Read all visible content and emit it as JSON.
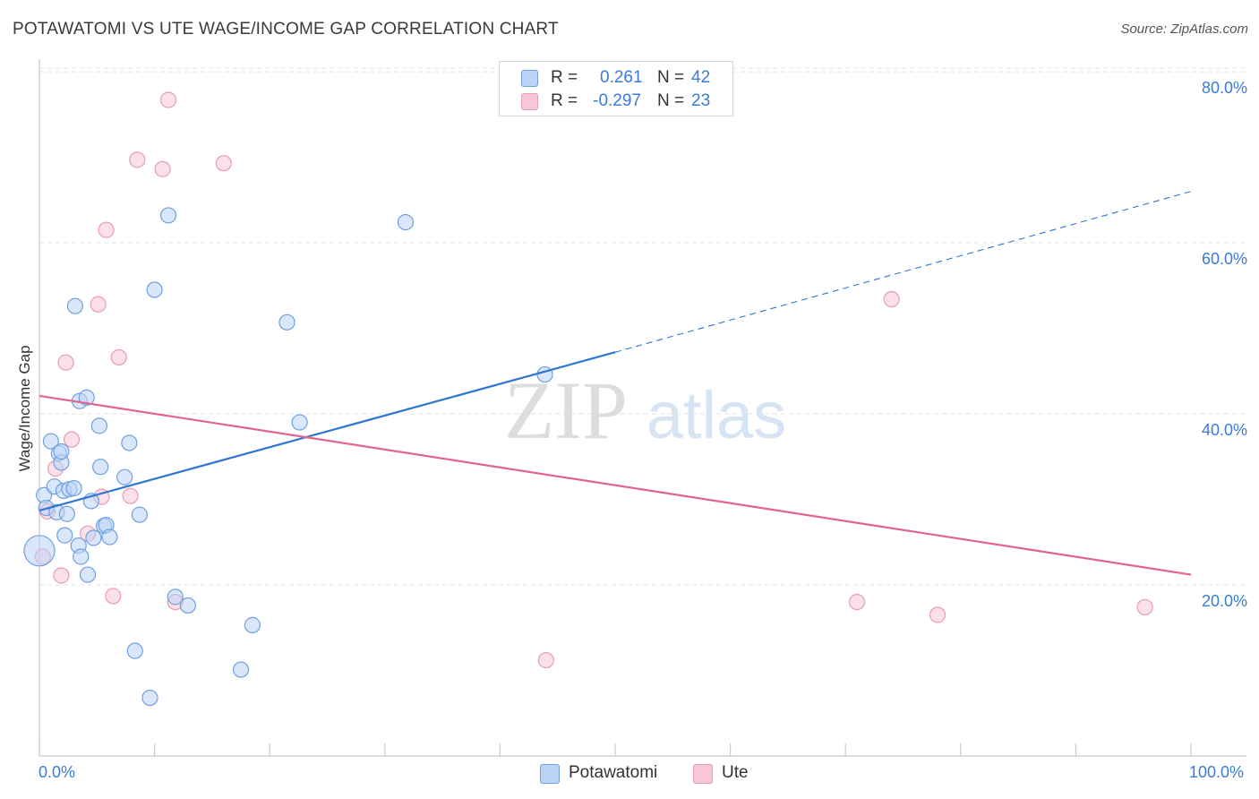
{
  "header": {
    "title": "POTAWATOMI VS UTE WAGE/INCOME GAP CORRELATION CHART",
    "source": "Source: ZipAtlas.com"
  },
  "legend_top": {
    "rows": [
      {
        "r_label": "R =",
        "r_value": "0.261",
        "n_label": "N =",
        "n_value": "42"
      },
      {
        "r_label": "R =",
        "r_value": "-0.297",
        "n_label": "N =",
        "n_value": "23"
      }
    ]
  },
  "legend_bottom": [
    "Potawatomi",
    "Ute"
  ],
  "watermark": {
    "zip": "ZIP",
    "atlas": "atlas"
  },
  "colors": {
    "blue_fill": "#bcd4f6",
    "blue_stroke": "#6f9fe0",
    "blue_line": "#2f75d2",
    "pink_fill": "#f8c6d6",
    "pink_stroke": "#e99ab4",
    "pink_line": "#e2648f",
    "tick_text": "#3a7bd5",
    "grid": "#e3e3e3"
  },
  "chart_data": {
    "type": "scatter",
    "title": "POTAWATOMI VS UTE WAGE/INCOME GAP CORRELATION CHART",
    "xlabel": "",
    "ylabel": "Wage/Income Gap",
    "xlim": [
      0,
      100
    ],
    "ylim": [
      0,
      80
    ],
    "x_tick_labels": [
      "0.0%",
      "100.0%"
    ],
    "y_ticks": [
      20,
      40,
      60,
      80
    ],
    "y_tick_labels": [
      "20.0%",
      "40.0%",
      "60.0%",
      "80.0%"
    ],
    "grid": true,
    "series": [
      {
        "name": "Potawatomi",
        "r": 0.261,
        "n": 42,
        "trend": {
          "x0": 0,
          "y0": 28.7,
          "x1": 50,
          "y1": 47.2,
          "dashed_to_x": 100,
          "dashed_to_y": 66.0
        },
        "points": [
          [
            0.0,
            24.0
          ],
          [
            0.4,
            30.5
          ],
          [
            0.6,
            29.0
          ],
          [
            1.0,
            36.8
          ],
          [
            1.3,
            31.5
          ],
          [
            1.5,
            28.5
          ],
          [
            1.7,
            35.4
          ],
          [
            1.9,
            34.3
          ],
          [
            2.1,
            31.0
          ],
          [
            2.2,
            25.8
          ],
          [
            2.4,
            28.3
          ],
          [
            2.6,
            31.2
          ],
          [
            3.0,
            31.3
          ],
          [
            3.1,
            52.6
          ],
          [
            3.4,
            24.6
          ],
          [
            3.5,
            41.5
          ],
          [
            3.6,
            23.3
          ],
          [
            4.1,
            41.9
          ],
          [
            4.5,
            29.8
          ],
          [
            4.7,
            25.5
          ],
          [
            5.2,
            38.6
          ],
          [
            5.3,
            33.8
          ],
          [
            5.6,
            26.9
          ],
          [
            5.8,
            27.0
          ],
          [
            6.1,
            25.6
          ],
          [
            7.4,
            32.6
          ],
          [
            7.8,
            36.6
          ],
          [
            8.3,
            12.3
          ],
          [
            8.7,
            28.2
          ],
          [
            9.6,
            6.8
          ],
          [
            10.0,
            54.5
          ],
          [
            11.2,
            63.2
          ],
          [
            11.8,
            18.6
          ],
          [
            12.9,
            17.6
          ],
          [
            17.5,
            10.1
          ],
          [
            18.5,
            15.3
          ],
          [
            21.5,
            50.7
          ],
          [
            22.6,
            39.0
          ],
          [
            31.8,
            62.4
          ],
          [
            43.9,
            44.6
          ],
          [
            4.2,
            21.2
          ],
          [
            1.9,
            35.6
          ]
        ]
      },
      {
        "name": "Ute",
        "r": -0.297,
        "n": 23,
        "trend": {
          "x0": 0,
          "y0": 42.1,
          "x1": 100,
          "y1": 21.2
        },
        "points": [
          [
            0.3,
            23.3
          ],
          [
            0.7,
            28.6
          ],
          [
            1.4,
            33.6
          ],
          [
            1.9,
            21.1
          ],
          [
            2.3,
            46.0
          ],
          [
            2.8,
            37.0
          ],
          [
            4.2,
            26.0
          ],
          [
            5.1,
            52.8
          ],
          [
            5.4,
            30.3
          ],
          [
            5.8,
            61.5
          ],
          [
            6.4,
            18.7
          ],
          [
            6.9,
            46.6
          ],
          [
            7.9,
            30.4
          ],
          [
            8.5,
            69.7
          ],
          [
            10.7,
            68.6
          ],
          [
            11.2,
            76.7
          ],
          [
            11.8,
            18.0
          ],
          [
            16.0,
            69.3
          ],
          [
            44.0,
            11.2
          ],
          [
            71.0,
            18.0
          ],
          [
            74.0,
            53.4
          ],
          [
            78.0,
            16.5
          ],
          [
            96.0,
            17.4
          ]
        ]
      }
    ]
  }
}
